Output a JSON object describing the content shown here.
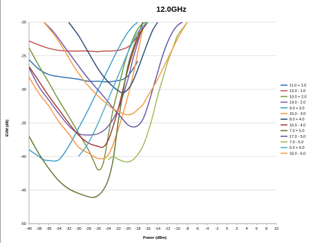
{
  "chart_data": {
    "type": "line",
    "title": "12.0GHz",
    "xlabel": "Power (dBm)",
    "ylabel": "EVM (dB)",
    "xlim": [
      -40,
      10
    ],
    "ylim": [
      -50,
      -20
    ],
    "xticks": [
      -40,
      -38,
      -36,
      -34,
      -32,
      -30,
      -28,
      -26,
      -24,
      -22,
      -20,
      -18,
      -16,
      -14,
      -12,
      -10,
      -8,
      -6,
      -4,
      -2,
      0,
      2,
      4,
      6,
      8,
      10
    ],
    "yticks": [
      -50,
      -45,
      -40,
      -35,
      -30,
      -25,
      -20
    ],
    "grid": "horizontal",
    "legend_position": "right",
    "series": [
      {
        "name": "11.0 + 1.0",
        "color": "#2e6fb0",
        "x": [
          -40,
          -38,
          -36,
          -34,
          -32,
          -30,
          -28,
          -26,
          -24,
          -22,
          -21,
          -20,
          -19,
          -18
        ],
        "y": [
          -25.6,
          -27.0,
          -27.8,
          -28.1,
          -28.3,
          -28.5,
          -28.8,
          -28.8,
          -28.9,
          -28.7,
          -28.5,
          -28.0,
          -27.0,
          -25.8
        ]
      },
      {
        "name": "13.0 - 1.0",
        "color": "#c0504d",
        "x": [
          -40,
          -38,
          -36,
          -34,
          -32,
          -30,
          -28,
          -26,
          -25,
          -24,
          -22,
          -20,
          -19,
          -18,
          -17,
          -16
        ],
        "y": [
          -22.8,
          -23.4,
          -23.9,
          -24.2,
          -24.3,
          -24.3,
          -24.3,
          -24.4,
          -24.3,
          -24.3,
          -24.2,
          -23.7,
          -23.0,
          -22.0,
          -21.0,
          -20.0
        ]
      },
      {
        "name": "10.0 + 2.0",
        "color": "#77933c",
        "x": [
          -40,
          -38,
          -36,
          -34,
          -32,
          -30,
          -28,
          -27,
          -26,
          -25,
          -24,
          -23,
          -22,
          -21,
          -20,
          -19,
          -18,
          -17,
          -16
        ],
        "y": [
          -23.8,
          -26.5,
          -29.0,
          -31.6,
          -34.0,
          -36.5,
          -39.0,
          -40.6,
          -42.0,
          -41.0,
          -37.0,
          -33.0,
          -30.0,
          -27.0,
          -24.5,
          -22.5,
          -21.0,
          -20.2,
          -20.0
        ]
      },
      {
        "name": "14.0 - 2.0",
        "color": "#7b5ba6",
        "x": [
          -40,
          -38,
          -36,
          -34,
          -32,
          -30,
          -28,
          -26,
          -24,
          -22,
          -20,
          -19,
          -18,
          -17
        ],
        "y": [
          -26.8,
          -29.6,
          -31.6,
          -33.6,
          -35.4,
          -36.6,
          -36.8,
          -36.6,
          -35.5,
          -33.0,
          -28.5,
          -25.5,
          -23.0,
          -20.5
        ]
      },
      {
        "name": "9.0 + 3.0",
        "color": "#3aa0c8",
        "x": [
          -40,
          -38,
          -37,
          -36,
          -34,
          -32,
          -30,
          -28,
          -26,
          -24,
          -22,
          -20,
          -18,
          -17
        ],
        "y": [
          -39.0,
          -40.0,
          -40.5,
          -40.6,
          -40.5,
          -38.5,
          -35.8,
          -33.0,
          -30.0,
          -27.0,
          -24.0,
          -21.5,
          -20.0,
          -20.0
        ]
      },
      {
        "name": "15.0 - 3.0",
        "color": "#f79646",
        "x": [
          -40,
          -38,
          -36,
          -34,
          -32,
          -30,
          -28,
          -26,
          -24,
          -22,
          -20,
          -19,
          -18,
          -17
        ],
        "y": [
          -28.2,
          -30.6,
          -32.5,
          -34.8,
          -36.6,
          -38.6,
          -39.5,
          -40.3,
          -39.8,
          -36.0,
          -31.0,
          -28.0,
          -24.5,
          -21.0
        ]
      },
      {
        "name": "8.0 + 4.0",
        "color": "#2c4d75",
        "x": [
          -32,
          -30,
          -28,
          -26,
          -24,
          -22,
          -21,
          -20,
          -19,
          -18,
          -17,
          -16,
          -15,
          -14
        ],
        "y": [
          -20.0,
          -22.0,
          -24.5,
          -27.0,
          -28.9,
          -30.2,
          -30.5,
          -30.0,
          -28.8,
          -27.0,
          -25.0,
          -23.0,
          -21.2,
          -20.0
        ]
      },
      {
        "name": "16.0 - 4.0",
        "color": "#9c3a38",
        "x": [
          -40,
          -38,
          -36,
          -34,
          -32,
          -30,
          -28,
          -26,
          -25,
          -24,
          -23,
          -22,
          -21,
          -20,
          -19,
          -18,
          -17,
          -16
        ],
        "y": [
          -26.6,
          -28.8,
          -31.0,
          -33.0,
          -35.0,
          -36.8,
          -38.0,
          -38.5,
          -38.6,
          -37.6,
          -35.5,
          -33.0,
          -30.0,
          -27.0,
          -24.5,
          -22.5,
          -21.0,
          -20.0
        ]
      },
      {
        "name": "7.0 + 5.0",
        "color": "#5f7530",
        "x": [
          -40,
          -38,
          -36,
          -34,
          -32,
          -30,
          -28,
          -27,
          -26,
          -25,
          -24,
          -23,
          -22,
          -21,
          -20,
          -19,
          -18,
          -17
        ],
        "y": [
          -37.0,
          -39.6,
          -41.8,
          -43.6,
          -44.8,
          -45.5,
          -46.0,
          -46.1,
          -45.8,
          -45.0,
          -43.5,
          -40.5,
          -35.0,
          -30.5,
          -26.5,
          -24.0,
          -22.0,
          -20.0
        ]
      },
      {
        "name": "17.0 - 5.0",
        "color": "#6a55a4",
        "x": [
          -37,
          -35,
          -33,
          -31,
          -29,
          -27,
          -25,
          -23,
          -21,
          -20,
          -19,
          -18,
          -17,
          -16,
          -15,
          -14,
          -13,
          -12,
          -11,
          -10,
          -9
        ],
        "y": [
          -20.0,
          -21.5,
          -23.5,
          -25.5,
          -27.5,
          -29.3,
          -31.0,
          -32.8,
          -34.5,
          -35.3,
          -35.6,
          -35.4,
          -34.5,
          -32.5,
          -30.0,
          -27.5,
          -25.0,
          -23.0,
          -21.5,
          -20.5,
          -20.0
        ]
      },
      {
        "name": "7.0 - 5.0",
        "color": "#9bbb59",
        "x": [
          -24,
          -23,
          -22,
          -21,
          -20,
          -19,
          -18,
          -17,
          -16,
          -15,
          -14,
          -13,
          -12,
          -11,
          -10,
          -9,
          -8
        ],
        "y": [
          -40.5,
          -40.0,
          -40.4,
          -40.7,
          -40.8,
          -40.5,
          -39.7,
          -38.5,
          -36.5,
          -34.0,
          -31.0,
          -28.5,
          -26.0,
          -24.0,
          -22.0,
          -21.0,
          -20.0
        ]
      },
      {
        "name": "6.0 + 6.0",
        "color": "#4bacc6",
        "x": [
          -30,
          -28,
          -26,
          -24,
          -22,
          -20,
          -18,
          -16,
          -15
        ],
        "y": [
          -40.0,
          -38.0,
          -35.0,
          -31.5,
          -28.0,
          -24.5,
          -21.5,
          -20.0,
          -20.0
        ]
      },
      {
        "name": "18.0 - 6.0",
        "color": "#f59d3f",
        "x": [
          -37,
          -35,
          -33,
          -31,
          -29,
          -27,
          -25,
          -23,
          -21,
          -20,
          -19,
          -18,
          -17,
          -16,
          -15,
          -14,
          -13,
          -12,
          -11,
          -10,
          -9,
          -8
        ],
        "y": [
          -20.0,
          -21.8,
          -24.0,
          -26.5,
          -28.6,
          -30.3,
          -31.7,
          -32.9,
          -33.6,
          -33.8,
          -33.6,
          -33.0,
          -32.3,
          -31.0,
          -29.8,
          -28.5,
          -27.0,
          -25.5,
          -24.0,
          -22.5,
          -21.2,
          -20.0
        ]
      }
    ]
  }
}
